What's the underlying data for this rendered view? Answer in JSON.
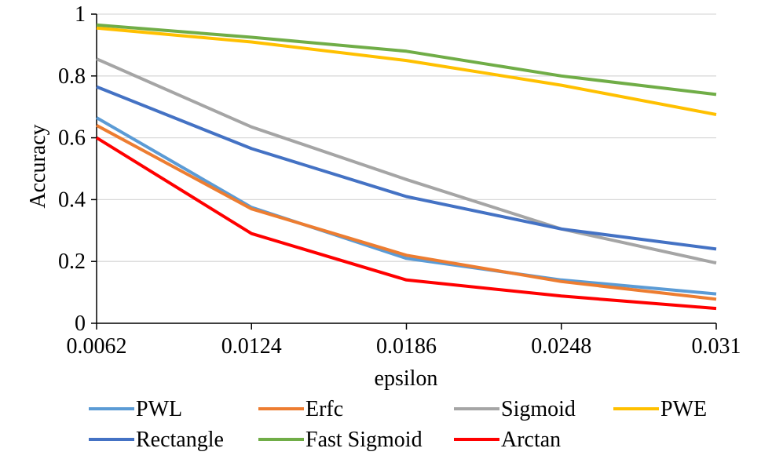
{
  "chart_data": {
    "type": "line",
    "title": "",
    "xlabel": "epsilon",
    "ylabel": "Accuracy",
    "categories": [
      "0.0062",
      "0.0124",
      "0.0186",
      "0.0248",
      "0.031"
    ],
    "ylim": [
      0,
      1
    ],
    "yticks": [
      "0",
      "0.2",
      "0.4",
      "0.6",
      "0.8",
      "1"
    ],
    "grid": true,
    "legend_position": "bottom",
    "series": [
      {
        "name": "PWL",
        "color": "#5B9BD5",
        "values": [
          0.665,
          0.375,
          0.21,
          0.14,
          0.095
        ]
      },
      {
        "name": "Erfc",
        "color": "#ED7D31",
        "values": [
          0.64,
          0.37,
          0.22,
          0.135,
          0.078
        ]
      },
      {
        "name": "Sigmoid",
        "color": "#A5A5A5",
        "values": [
          0.855,
          0.635,
          0.465,
          0.305,
          0.195
        ]
      },
      {
        "name": "PWE",
        "color": "#FFC000",
        "values": [
          0.955,
          0.91,
          0.85,
          0.77,
          0.675
        ]
      },
      {
        "name": "Rectangle",
        "color": "#4472C4",
        "values": [
          0.765,
          0.565,
          0.41,
          0.305,
          0.24
        ]
      },
      {
        "name": "Fast Sigmoid",
        "color": "#70AD47",
        "values": [
          0.965,
          0.925,
          0.88,
          0.8,
          0.74
        ]
      },
      {
        "name": "Arctan",
        "color": "#FF0000",
        "values": [
          0.6,
          0.29,
          0.14,
          0.088,
          0.048
        ]
      }
    ]
  }
}
